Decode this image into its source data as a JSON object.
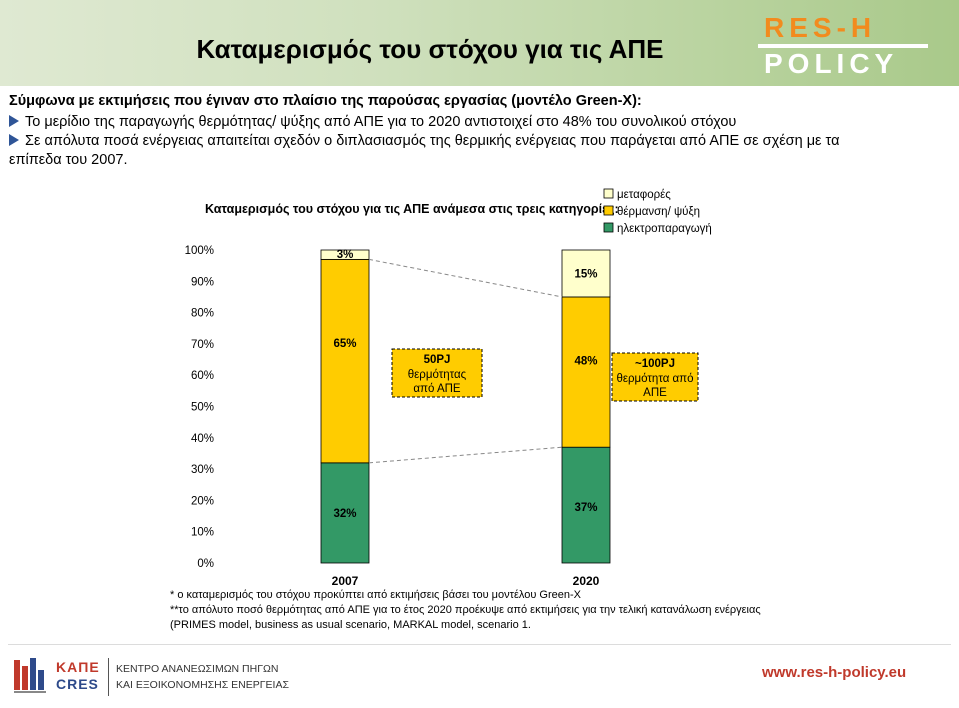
{
  "header": {
    "title": "Καταμερισμός του στόχου για τις ΑΠΕ",
    "logo_line1": "RES-H",
    "logo_line2": "POLICY"
  },
  "body": {
    "intro": "Σύμφωνα με εκτιμήσεις που έγιναν στο πλαίσιο της παρούσας εργασίας (μοντέλο Green-X):",
    "bullet1": "Το μερίδιο της παραγωγής θερμότητας/ ψύξης από ΑΠΕ για το 2020 αντιστοιχεί στο 48% του συνολικού στόχου",
    "bullet2": "Σε απόλυτα ποσά ενέργειας απαιτείται σχεδόν ο διπλασιασμός της θερμικής ενέργειας που παράγεται από ΑΠΕ σε σχέση με τα",
    "bullet2_cont": "επίπεδα του 2007."
  },
  "chart_data": {
    "type": "bar",
    "stacked": true,
    "title": "Καταμερισμός του στόχου για τις ΑΠΕ ανάμεσα στις τρεις κατηγορίες:",
    "categories": [
      "2007",
      "2020"
    ],
    "ylim": [
      0,
      100
    ],
    "yticks": [
      "0%",
      "10%",
      "20%",
      "30%",
      "40%",
      "50%",
      "60%",
      "70%",
      "80%",
      "90%",
      "100%"
    ],
    "grid": false,
    "legend_position": "top-right",
    "series": [
      {
        "name": "ηλεκτροπαραγωγή",
        "values": [
          32,
          37
        ],
        "labels": [
          "32%",
          "37%"
        ],
        "color": "#339966"
      },
      {
        "name": "θέρμανση/ ψύξη",
        "values": [
          65,
          48
        ],
        "labels": [
          "65%",
          "48%"
        ],
        "color": "#ffcc00"
      },
      {
        "name": "μεταφορές",
        "values": [
          3,
          15
        ],
        "labels": [
          "3%",
          "15%"
        ],
        "color": "#ffffcc"
      }
    ],
    "annotations": [
      {
        "head": "50PJ",
        "line1": "θερμότητας",
        "line2": "από ΑΠΕ"
      },
      {
        "head": "~100PJ",
        "line1": "θερμότητα από",
        "line2": "ΑΠΕ"
      }
    ],
    "footnotes": [
      "* ο καταμερισμός του στόχου προκύπτει από εκτιμήσεις βάσει του μοντέλου Green-X",
      "**το απόλυτο ποσό θερμότητας από ΑΠΕ για το έτος 2020 προέκυψε από εκτιμήσεις για την τελική κατανάλωση ενέργειας",
      "(PRIMES model, business as usual scenario, MARKAL model, scenario 1."
    ]
  },
  "footer": {
    "org_short1": "ΚΑΠΕ",
    "org_short2": "CRES",
    "org_full1": "ΚΕΝΤΡΟ ΑΝΑΝΕΩΣΙΜΩΝ ΠΗΓΩΝ",
    "org_full2": "ΚΑΙ ΕΞΟΙΚΟΝΟΜΗΣΗΣ ΕΝΕΡΓΕΙΑΣ",
    "url": "www.res-h-policy.eu"
  }
}
